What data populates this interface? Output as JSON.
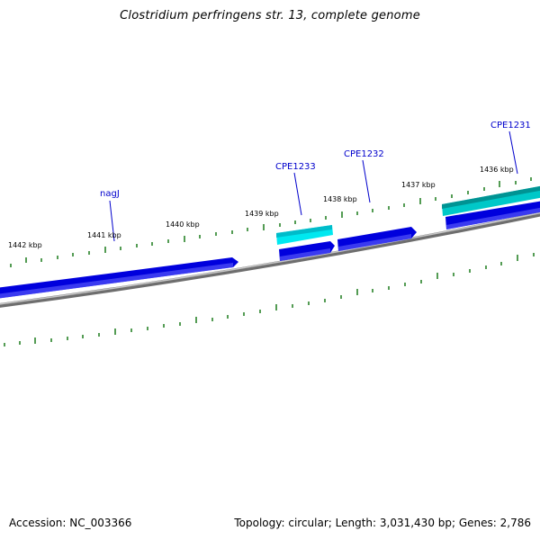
{
  "title": "Clostridium perfringens str. 13, complete genome",
  "footer": {
    "accession": "Accession: NC_003366",
    "summary": "Topology: circular; Length: 3,031,430 bp; Genes: 2,786"
  },
  "kbp_labels": [
    "1442 kbp",
    "1441 kbp",
    "1440 kbp",
    "1439 kbp",
    "1438 kbp",
    "1437 kbp",
    "1436 kbp"
  ],
  "gene_labels": [
    "nagJ",
    "CPE1233",
    "CPE1232",
    "CPE1231"
  ],
  "colors": {
    "backbone": "#808080",
    "gene_blue": "#0000dd",
    "gene_cyan": "#00e5ee",
    "gene_teal": "#00a8a8",
    "ticks": "#1a7a1a",
    "label_blue": "#0000cc"
  }
}
